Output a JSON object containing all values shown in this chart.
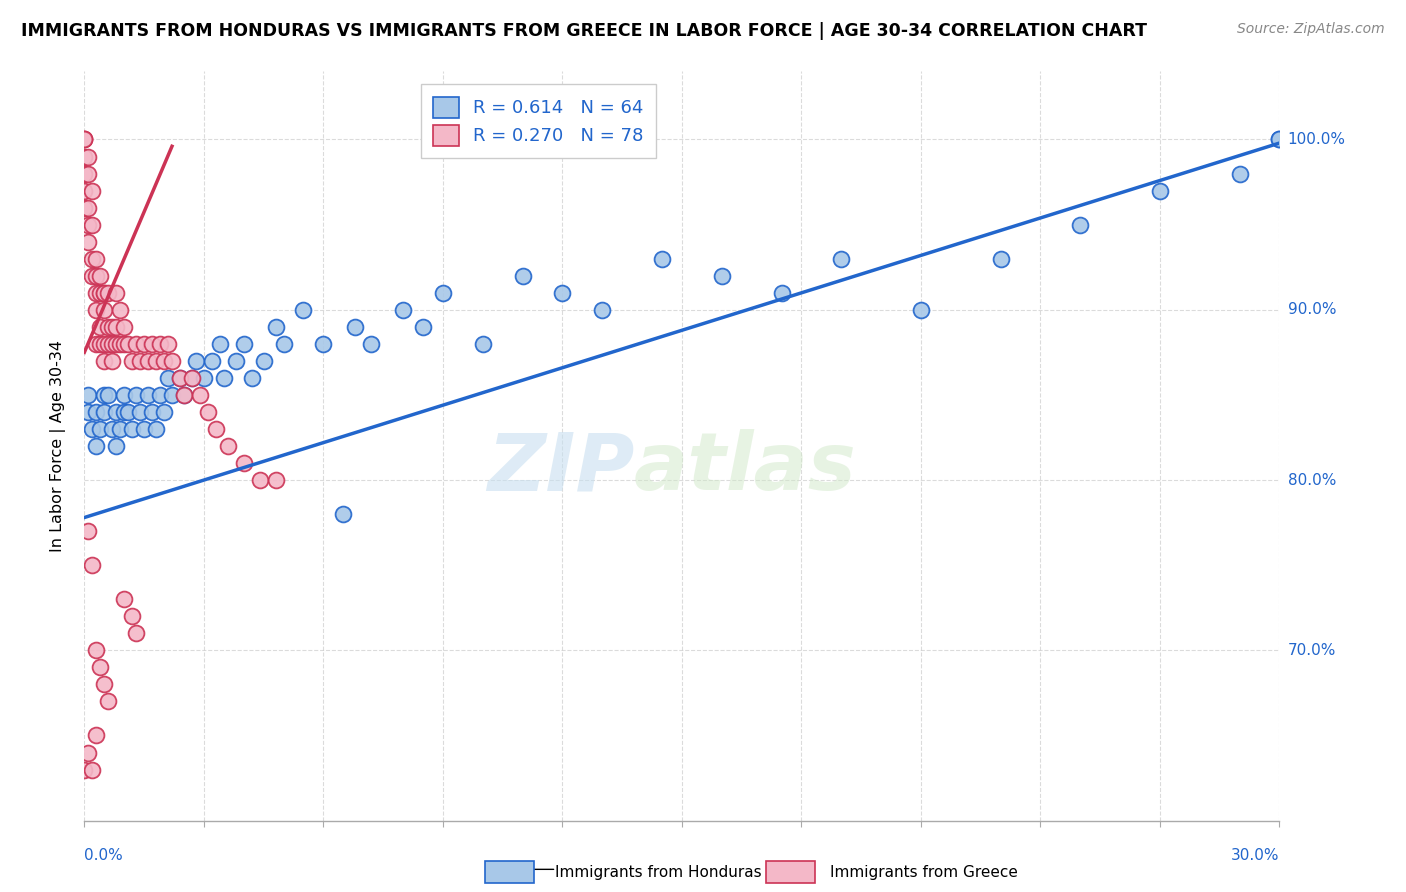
{
  "title": "IMMIGRANTS FROM HONDURAS VS IMMIGRANTS FROM GREECE IN LABOR FORCE | AGE 30-34 CORRELATION CHART",
  "source": "Source: ZipAtlas.com",
  "xlim": [
    0.0,
    0.3
  ],
  "ylim": [
    0.6,
    1.04
  ],
  "ylabel_ticks": [
    "100.0%",
    "90.0%",
    "80.0%",
    "70.0%"
  ],
  "ylabel_tick_vals": [
    1.0,
    0.9,
    0.8,
    0.7
  ],
  "blue_color": "#a8c8e8",
  "pink_color": "#f4b8c8",
  "trendline_blue": "#2266cc",
  "trendline_pink": "#cc3355",
  "trendline_blue_legend": "#2266cc",
  "trendline_pink_legend": "#cc3355",
  "watermark_zip": "ZIP",
  "watermark_atlas": "atlas",
  "legend_r_blue": "0.614",
  "legend_n_blue": "64",
  "legend_r_pink": "0.270",
  "legend_n_pink": "78",
  "blue_slope": 0.733,
  "blue_intercept": 0.778,
  "pink_slope": 5.5,
  "pink_intercept": 0.875,
  "pink_trend_xmax": 0.022,
  "blue_points_x": [
    0.001,
    0.001,
    0.002,
    0.003,
    0.003,
    0.004,
    0.005,
    0.005,
    0.006,
    0.007,
    0.008,
    0.008,
    0.009,
    0.01,
    0.01,
    0.011,
    0.012,
    0.013,
    0.014,
    0.015,
    0.016,
    0.017,
    0.018,
    0.019,
    0.02,
    0.021,
    0.022,
    0.024,
    0.025,
    0.027,
    0.028,
    0.03,
    0.032,
    0.034,
    0.035,
    0.038,
    0.04,
    0.042,
    0.045,
    0.048,
    0.05,
    0.055,
    0.06,
    0.065,
    0.068,
    0.072,
    0.08,
    0.085,
    0.09,
    0.1,
    0.11,
    0.12,
    0.13,
    0.145,
    0.16,
    0.175,
    0.19,
    0.21,
    0.23,
    0.25,
    0.27,
    0.29,
    0.3,
    0.3
  ],
  "blue_points_y": [
    0.84,
    0.85,
    0.83,
    0.82,
    0.84,
    0.83,
    0.85,
    0.84,
    0.85,
    0.83,
    0.84,
    0.82,
    0.83,
    0.85,
    0.84,
    0.84,
    0.83,
    0.85,
    0.84,
    0.83,
    0.85,
    0.84,
    0.83,
    0.85,
    0.84,
    0.86,
    0.85,
    0.86,
    0.85,
    0.86,
    0.87,
    0.86,
    0.87,
    0.88,
    0.86,
    0.87,
    0.88,
    0.86,
    0.87,
    0.89,
    0.88,
    0.9,
    0.88,
    0.78,
    0.89,
    0.88,
    0.9,
    0.89,
    0.91,
    0.88,
    0.92,
    0.91,
    0.9,
    0.93,
    0.92,
    0.91,
    0.93,
    0.9,
    0.93,
    0.95,
    0.97,
    0.98,
    1.0,
    1.0
  ],
  "pink_points_x": [
    0.0,
    0.0,
    0.0,
    0.0,
    0.0,
    0.0,
    0.0,
    0.001,
    0.001,
    0.001,
    0.001,
    0.001,
    0.002,
    0.002,
    0.002,
    0.002,
    0.003,
    0.003,
    0.003,
    0.003,
    0.003,
    0.004,
    0.004,
    0.004,
    0.004,
    0.005,
    0.005,
    0.005,
    0.005,
    0.005,
    0.006,
    0.006,
    0.006,
    0.007,
    0.007,
    0.007,
    0.008,
    0.008,
    0.008,
    0.009,
    0.009,
    0.01,
    0.01,
    0.011,
    0.012,
    0.013,
    0.014,
    0.015,
    0.016,
    0.017,
    0.018,
    0.019,
    0.02,
    0.021,
    0.022,
    0.024,
    0.025,
    0.027,
    0.029,
    0.031,
    0.033,
    0.036,
    0.04,
    0.044,
    0.048,
    0.01,
    0.012,
    0.013,
    0.003,
    0.004,
    0.005,
    0.006,
    0.003,
    0.002,
    0.001,
    0.0,
    0.001,
    0.002
  ],
  "pink_points_y": [
    1.0,
    1.0,
    1.0,
    0.99,
    0.98,
    0.97,
    0.96,
    0.96,
    0.95,
    0.94,
    0.98,
    0.99,
    0.97,
    0.95,
    0.93,
    0.92,
    0.91,
    0.93,
    0.9,
    0.92,
    0.88,
    0.91,
    0.89,
    0.92,
    0.88,
    0.91,
    0.9,
    0.88,
    0.87,
    0.91,
    0.89,
    0.88,
    0.91,
    0.89,
    0.88,
    0.87,
    0.91,
    0.89,
    0.88,
    0.9,
    0.88,
    0.89,
    0.88,
    0.88,
    0.87,
    0.88,
    0.87,
    0.88,
    0.87,
    0.88,
    0.87,
    0.88,
    0.87,
    0.88,
    0.87,
    0.86,
    0.85,
    0.86,
    0.85,
    0.84,
    0.83,
    0.82,
    0.81,
    0.8,
    0.8,
    0.73,
    0.72,
    0.71,
    0.7,
    0.69,
    0.68,
    0.67,
    0.65,
    0.75,
    0.77,
    0.63,
    0.64,
    0.63
  ]
}
